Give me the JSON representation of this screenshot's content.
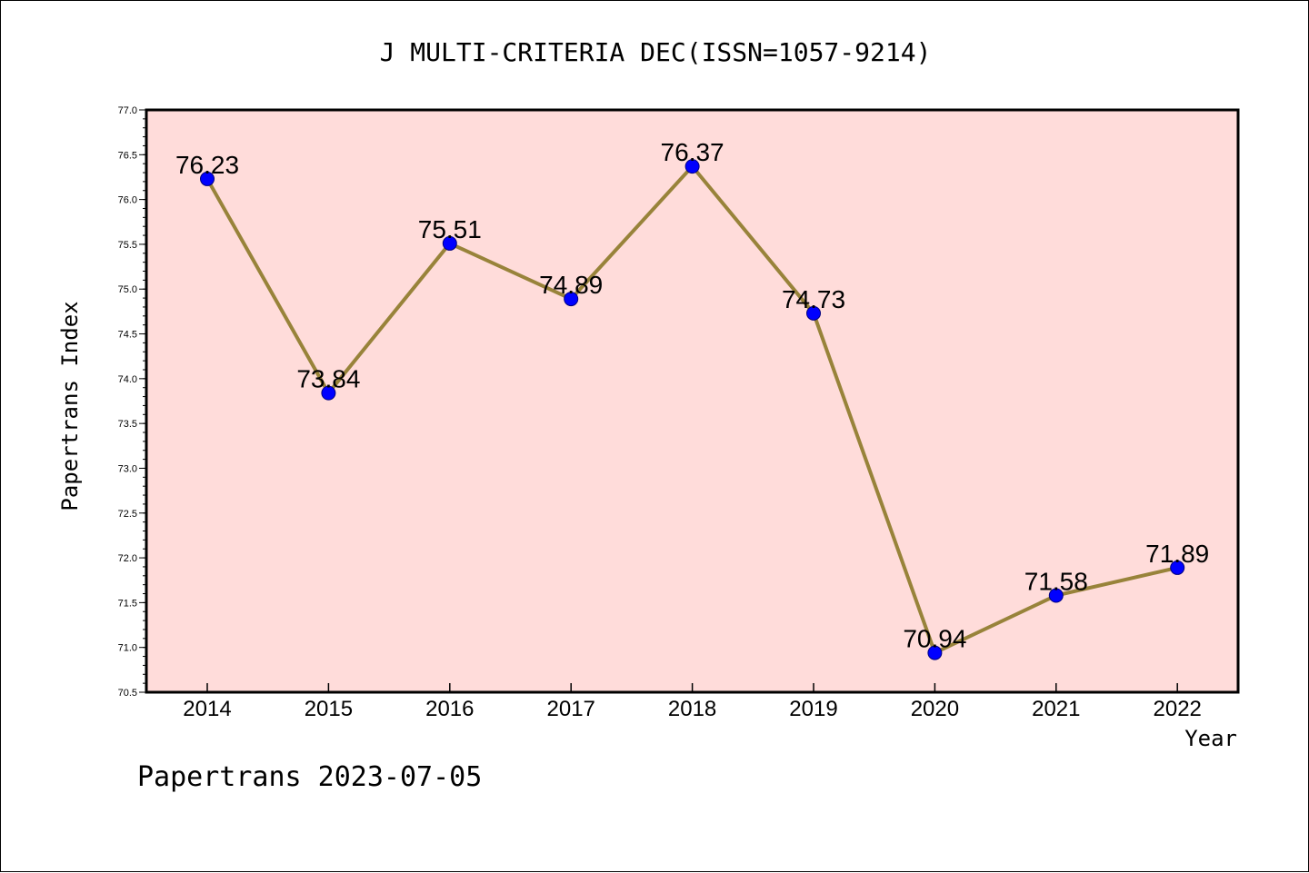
{
  "colors": {
    "plot_background": "#ffdcda",
    "line": "#98833a",
    "marker": "#0000ff",
    "marker_edge": "#000080",
    "axis": "#000000"
  },
  "chart_data": {
    "type": "line",
    "title": "J MULTI-CRITERIA DEC(ISSN=1057-9214)",
    "xlabel": "Year",
    "ylabel": "Papertrans Index",
    "footer": "Papertrans 2023-07-05",
    "categories": [
      "2014",
      "2015",
      "2016",
      "2017",
      "2018",
      "2019",
      "2020",
      "2021",
      "2022"
    ],
    "values": [
      76.23,
      73.84,
      75.51,
      74.89,
      76.37,
      74.73,
      70.94,
      71.58,
      71.89
    ],
    "data_labels": [
      "76.23",
      "73.84",
      "75.51",
      "74.89",
      "76.37",
      "74.73",
      "70.94",
      "71.58",
      "71.89"
    ],
    "ylim": [
      70.5,
      77.0
    ],
    "yticks": [
      "70.5",
      "71.0",
      "71.5",
      "72.0",
      "72.5",
      "73.0",
      "73.5",
      "74.0",
      "74.5",
      "75.0",
      "75.5",
      "76.0",
      "76.5",
      "77.0"
    ],
    "grid": false,
    "legend": "none"
  }
}
